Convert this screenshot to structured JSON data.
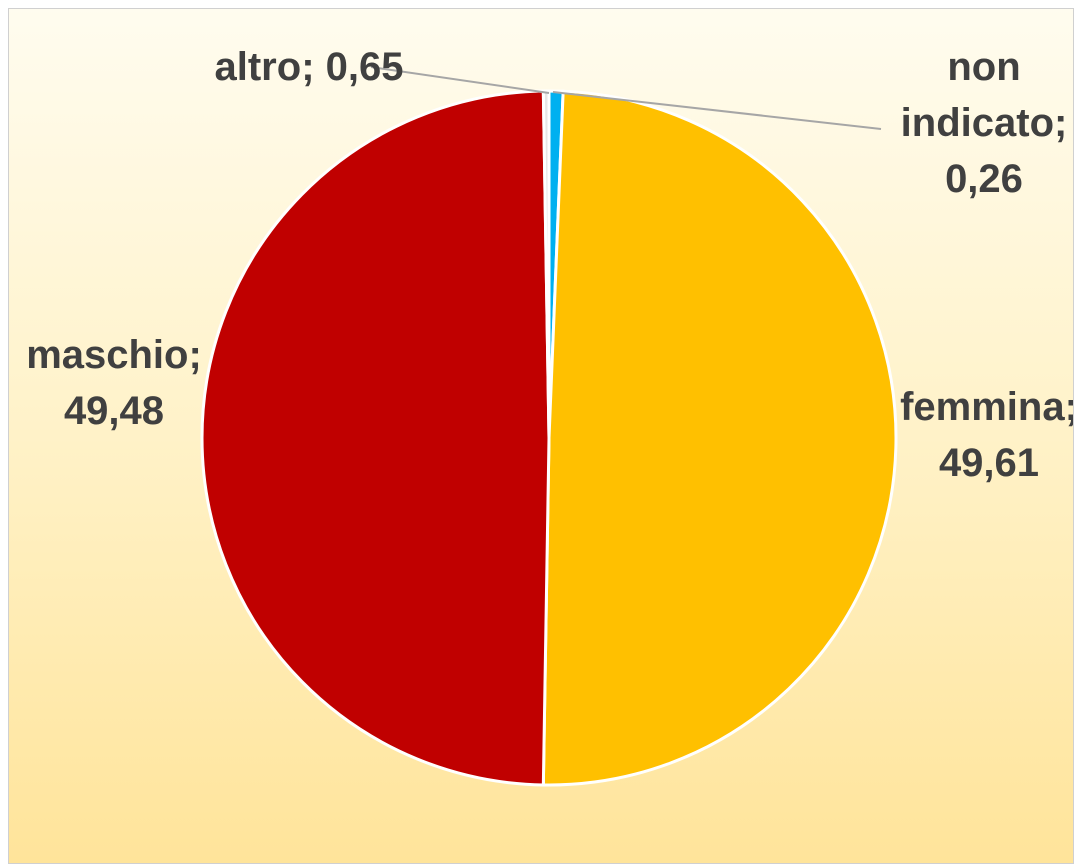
{
  "chart_data": {
    "type": "pie",
    "categories": [
      "altro",
      "femmina",
      "maschio",
      "non indicato"
    ],
    "values": [
      0.65,
      49.61,
      49.48,
      0.26
    ],
    "value_labels": [
      "0,65",
      "49,61",
      "49,48",
      "0,26"
    ],
    "label_separator": ";",
    "colors": [
      "#00B0F0",
      "#FFC000",
      "#C00000",
      "#E7E6E6"
    ]
  }
}
